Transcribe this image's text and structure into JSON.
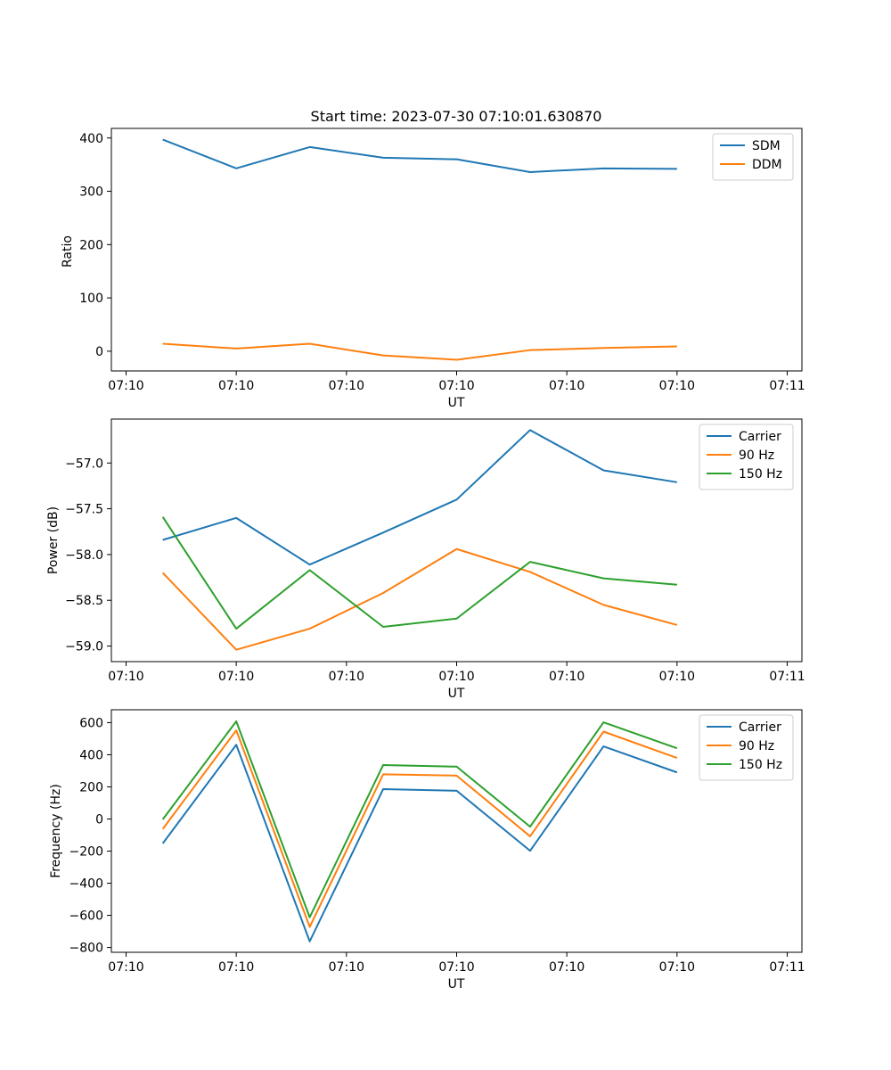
{
  "chart_data": [
    {
      "type": "line",
      "title": "Start time: 2023-07-30 07:10:01.630870",
      "xlabel": "UT",
      "ylabel": "Ratio",
      "x_tick_labels": [
        "07:10",
        "07:10",
        "07:10",
        "07:10",
        "07:10",
        "07:10",
        "07:11"
      ],
      "y_ticks": [
        0,
        100,
        200,
        300,
        400
      ],
      "y_tick_labels": [
        "0",
        "100",
        "200",
        "300",
        "400"
      ],
      "ylim": [
        -37,
        418
      ],
      "legend_position": "top-right",
      "series": [
        {
          "name": "SDM",
          "color": "#1f77b4",
          "values": [
            397,
            343,
            383,
            363,
            360,
            336,
            343,
            342
          ]
        },
        {
          "name": "DDM",
          "color": "#ff7f0e",
          "values": [
            14,
            5,
            14,
            -8,
            -16,
            2,
            6,
            9
          ]
        }
      ]
    },
    {
      "type": "line",
      "title": "",
      "xlabel": "UT",
      "ylabel": "Power (dB)",
      "x_tick_labels": [
        "07:10",
        "07:10",
        "07:10",
        "07:10",
        "07:10",
        "07:10",
        "07:11"
      ],
      "y_ticks": [
        -59.0,
        -58.5,
        -58.0,
        -57.5,
        -57.0
      ],
      "y_tick_labels": [
        "−59.0",
        "−58.5",
        "−58.0",
        "−57.5",
        "−57.0"
      ],
      "ylim": [
        -59.17,
        -56.52
      ],
      "legend_position": "top-right",
      "series": [
        {
          "name": "Carrier",
          "color": "#1f77b4",
          "values": [
            -57.84,
            -57.6,
            -58.11,
            -57.76,
            -57.4,
            -56.64,
            -57.08,
            -57.21
          ]
        },
        {
          "name": "90 Hz",
          "color": "#ff7f0e",
          "values": [
            -58.2,
            -59.04,
            -58.81,
            -58.42,
            -57.94,
            -58.19,
            -58.55,
            -58.77
          ]
        },
        {
          "name": "150 Hz",
          "color": "#2ca02c",
          "values": [
            -57.59,
            -58.81,
            -58.17,
            -58.79,
            -58.7,
            -58.08,
            -58.26,
            -58.33
          ]
        }
      ]
    },
    {
      "type": "line",
      "title": "",
      "xlabel": "UT",
      "ylabel": "Frequency (Hz)",
      "x_tick_labels": [
        "07:10",
        "07:10",
        "07:10",
        "07:10",
        "07:10",
        "07:10",
        "07:11"
      ],
      "y_ticks": [
        -800,
        -600,
        -400,
        -200,
        0,
        200,
        400,
        600
      ],
      "y_tick_labels": [
        "−800",
        "−600",
        "−400",
        "−200",
        "0",
        "200",
        "400",
        "600"
      ],
      "ylim": [
        -830,
        680
      ],
      "legend_position": "top-right",
      "series": [
        {
          "name": "Carrier",
          "color": "#1f77b4",
          "values": [
            -152,
            462,
            -762,
            186,
            176,
            -198,
            452,
            290
          ]
        },
        {
          "name": "90 Hz",
          "color": "#ff7f0e",
          "values": [
            -62,
            552,
            -672,
            278,
            270,
            -108,
            544,
            380
          ]
        },
        {
          "name": "150 Hz",
          "color": "#2ca02c",
          "values": [
            -2,
            608,
            -612,
            336,
            326,
            -48,
            602,
            440
          ]
        }
      ]
    }
  ]
}
